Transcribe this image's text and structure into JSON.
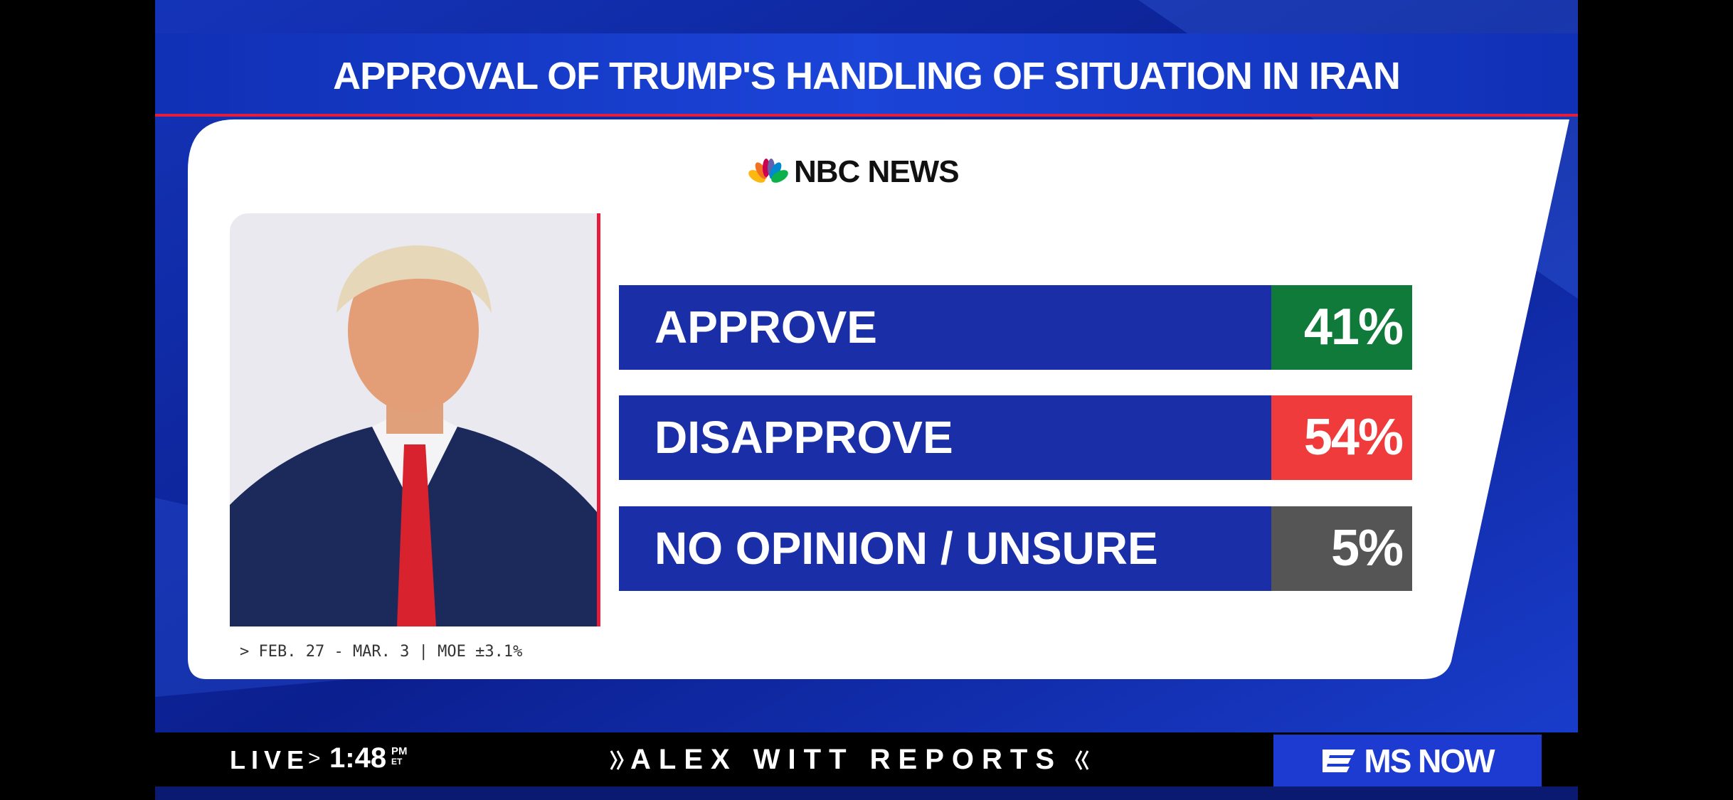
{
  "header": {
    "title": "APPROVAL OF TRUMP'S HANDLING OF SITUATION IN IRAN"
  },
  "source": "NBC NEWS",
  "results": [
    {
      "label": "APPROVE",
      "value": "41%",
      "color": "#0f7a3a"
    },
    {
      "label": "DISAPPROVE",
      "value": "54%",
      "color": "#ef3b3b"
    },
    {
      "label": "NO OPINION / UNSURE",
      "value": "5%",
      "color": "#555555"
    }
  ],
  "footnote": "> FEB. 27 - MAR. 3 | MOE ±3.1%",
  "ticker": {
    "live": "LIVE",
    "separator": ">",
    "time": "1:48",
    "meridiem": "PM",
    "zone": "ET",
    "show": "ALEX WITT REPORTS",
    "network": "MS NOW"
  }
}
